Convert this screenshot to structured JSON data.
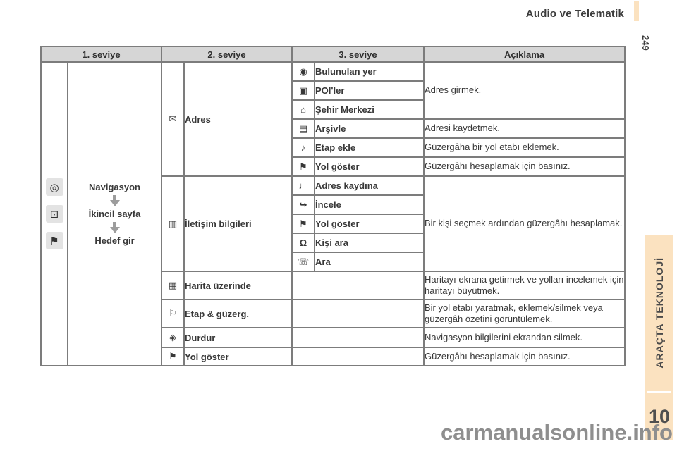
{
  "page": {
    "header_title": "Audio ve Telematik",
    "page_number_rotated": "249",
    "side_tab": {
      "label": "ARAÇTA TEKNOLOJİ",
      "chapter_number": "10",
      "bg_color": "#fbe2c0"
    },
    "watermark": "carmanualsonline.info"
  },
  "colors": {
    "tab_accent": "#fbe2c0",
    "table_border": "#7c7c7c",
    "header_row_bg": "#d6d6d6",
    "description_bg": "#ececec"
  },
  "table": {
    "headers": [
      "1. seviye",
      "2. seviye",
      "3. seviye",
      "Açıklama"
    ],
    "level1": {
      "icons": [
        {
          "name": "navigation-compass-icon",
          "glyph": "◎"
        },
        {
          "name": "secondary-page-icon",
          "glyph": "⊡"
        },
        {
          "name": "destination-flag-icon",
          "glyph": "⚑"
        }
      ],
      "flow": [
        "Navigasyon",
        "İkincil sayfa",
        "Hedef gir"
      ]
    },
    "level2_groups": [
      {
        "icon_name": "address-icon",
        "glyph": "✉",
        "label": "Adres",
        "span": 6
      },
      {
        "icon_name": "contacts-book-icon",
        "glyph": "▥",
        "label": "İletişim bilgileri",
        "span": 5
      },
      {
        "icon_name": "map-zoom-icon",
        "glyph": "▦",
        "label": "Harita üzerinde",
        "span": 1
      },
      {
        "icon_name": "stage-route-flag-icon",
        "glyph": "⚐",
        "label": "Etap & güzerg.",
        "span": 1
      },
      {
        "icon_name": "stop-guidance-icon",
        "glyph": "◈",
        "label": "Durdur",
        "span": 1
      },
      {
        "icon_name": "calculate-route-flag-icon",
        "glyph": "⚑",
        "label": "Yol göster",
        "span": 1
      }
    ],
    "level3_rows": [
      {
        "icon_name": "current-location-icon",
        "glyph": "◉",
        "label": "Bulunulan yer"
      },
      {
        "icon_name": "poi-icon",
        "glyph": "▣",
        "label": "POI'ler"
      },
      {
        "icon_name": "city-centre-icon",
        "glyph": "⌂",
        "label": "Şehir Merkezi"
      },
      {
        "icon_name": "archive-save-icon",
        "glyph": "▤",
        "label": "Arşivle"
      },
      {
        "icon_name": "add-stage-icon",
        "glyph": "♪",
        "label": "Etap ekle"
      },
      {
        "icon_name": "calculate-route-flag-icon",
        "glyph": "⚑",
        "label": "Yol göster"
      },
      {
        "icon_name": "address-record-icon",
        "glyph": "♩",
        "label": "Adres kaydına"
      },
      {
        "icon_name": "view-on-map-icon",
        "glyph": "↪",
        "label": "İncele"
      },
      {
        "icon_name": "calculate-route-flag-icon",
        "glyph": "⚑",
        "label": "Yol göster"
      },
      {
        "icon_name": "person-icon",
        "glyph": "Ω",
        "label": "Kişi ara"
      },
      {
        "icon_name": "phone-icon",
        "glyph": "☏",
        "label": "Ara"
      }
    ],
    "descriptions": [
      {
        "text": "Adres girmek.",
        "span": 3
      },
      {
        "text": "Adresi kaydetmek.",
        "span": 1
      },
      {
        "text": "Güzergâha bir yol etabı eklemek.",
        "span": 1
      },
      {
        "text": "Güzergâhı hesaplamak için basınız.",
        "span": 1
      },
      {
        "text": "Bir kişi seçmek ardından güzergâhı hesaplamak.",
        "span": 5
      },
      {
        "text": "Haritayı ekrana getirmek ve yolları incelemek için haritayı büyütmek.",
        "span": 1
      },
      {
        "text": "Bir yol etabı yaratmak, eklemek/silmek veya güzergâh özetini görüntülemek.",
        "span": 1
      },
      {
        "text": "Navigasyon bilgilerini ekrandan silmek.",
        "span": 1
      },
      {
        "text": "Güzergâhı hesaplamak için basınız.",
        "span": 1
      }
    ]
  }
}
